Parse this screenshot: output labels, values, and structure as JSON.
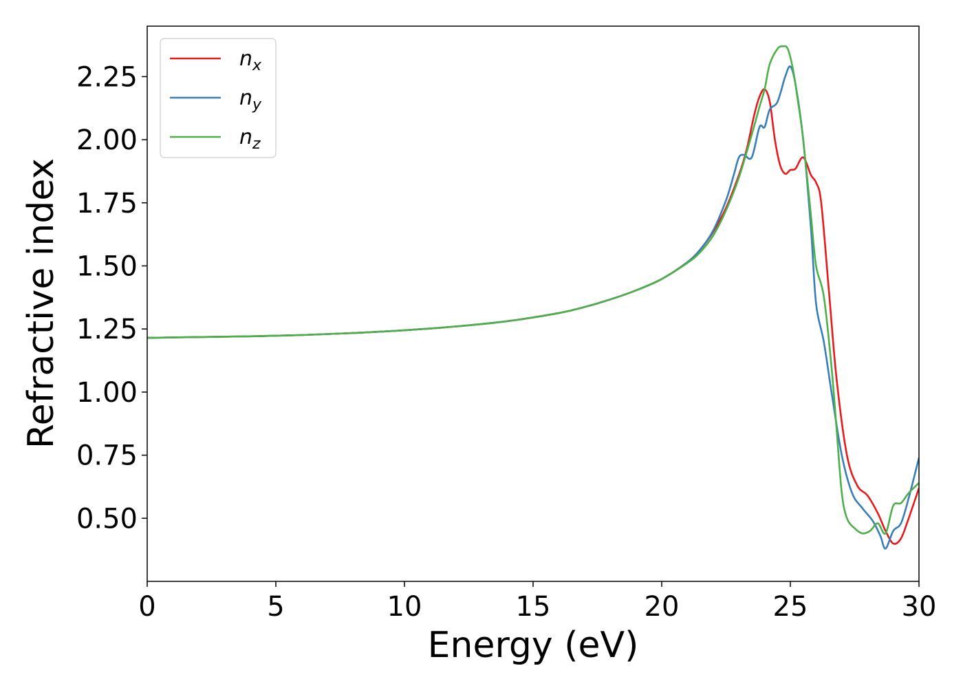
{
  "chart_data": {
    "type": "line",
    "title": "",
    "xlabel": "Energy (eV)",
    "ylabel": "Refractive index",
    "xlim": [
      0,
      30
    ],
    "ylim": [
      0.25,
      2.45
    ],
    "xticks": [
      0,
      5,
      10,
      15,
      20,
      25,
      30
    ],
    "xtick_labels": [
      "0",
      "5",
      "10",
      "15",
      "20",
      "25",
      "30"
    ],
    "yticks": [
      0.5,
      0.75,
      1.0,
      1.25,
      1.5,
      1.75,
      2.0,
      2.25
    ],
    "ytick_labels": [
      "0.50",
      "0.75",
      "1.00",
      "1.25",
      "1.50",
      "1.75",
      "2.00",
      "2.25"
    ],
    "grid": false,
    "legend_position": "top-left",
    "series": [
      {
        "name": "n_x",
        "legend_base": "n",
        "legend_sub": "x",
        "color": "#e41a1c",
        "x": [
          0,
          2,
          4,
          6,
          8,
          10,
          12,
          14,
          16,
          17,
          18,
          19,
          20,
          21,
          21.5,
          22,
          22.5,
          23,
          23.3,
          23.6,
          23.8,
          24,
          24.2,
          24.4,
          24.6,
          24.8,
          25,
          25.2,
          25.5,
          25.8,
          26,
          26.2,
          26.5,
          26.8,
          27.2,
          27.6,
          28,
          28.4,
          28.7,
          29,
          29.3,
          29.6,
          30
        ],
        "y": [
          1.215,
          1.218,
          1.221,
          1.226,
          1.234,
          1.245,
          1.26,
          1.281,
          1.313,
          1.337,
          1.367,
          1.403,
          1.448,
          1.515,
          1.565,
          1.635,
          1.73,
          1.86,
          1.96,
          2.1,
          2.17,
          2.2,
          2.15,
          2.0,
          1.9,
          1.865,
          1.88,
          1.885,
          1.93,
          1.86,
          1.83,
          1.75,
          1.4,
          1.05,
          0.75,
          0.63,
          0.59,
          0.52,
          0.45,
          0.4,
          0.42,
          0.5,
          0.62
        ]
      },
      {
        "name": "n_y",
        "legend_base": "n",
        "legend_sub": "y",
        "color": "#377eb8",
        "x": [
          0,
          2,
          4,
          6,
          8,
          10,
          12,
          14,
          16,
          17,
          18,
          19,
          20,
          21,
          21.5,
          22,
          22.5,
          22.8,
          23,
          23.2,
          23.5,
          23.8,
          24,
          24.2,
          24.5,
          24.8,
          25,
          25.2,
          25.5,
          25.8,
          26,
          26.3,
          26.6,
          27,
          27.4,
          27.8,
          28.2,
          28.5,
          28.7,
          29,
          29.3,
          29.6,
          30
        ],
        "y": [
          1.215,
          1.218,
          1.221,
          1.226,
          1.234,
          1.245,
          1.26,
          1.281,
          1.313,
          1.337,
          1.367,
          1.403,
          1.448,
          1.515,
          1.565,
          1.64,
          1.76,
          1.86,
          1.93,
          1.94,
          1.93,
          2.05,
          2.05,
          2.12,
          2.15,
          2.25,
          2.29,
          2.22,
          2.0,
          1.65,
          1.35,
          1.2,
          1.0,
          0.75,
          0.6,
          0.54,
          0.49,
          0.43,
          0.38,
          0.45,
          0.48,
          0.58,
          0.74
        ]
      },
      {
        "name": "n_z",
        "legend_base": "n",
        "legend_sub": "z",
        "color": "#4daf4a",
        "x": [
          0,
          2,
          4,
          6,
          8,
          10,
          12,
          14,
          16,
          17,
          18,
          19,
          20,
          21,
          21.5,
          22,
          22.5,
          23,
          23.5,
          23.8,
          24,
          24.2,
          24.5,
          24.7,
          24.9,
          25.1,
          25.3,
          25.5,
          25.8,
          26,
          26.3,
          26.6,
          26.8,
          27,
          27.2,
          27.5,
          27.8,
          28.1,
          28.4,
          28.7,
          29,
          29.3,
          29.6,
          30
        ],
        "y": [
          1.215,
          1.218,
          1.221,
          1.226,
          1.234,
          1.245,
          1.26,
          1.281,
          1.313,
          1.337,
          1.367,
          1.403,
          1.448,
          1.512,
          1.555,
          1.62,
          1.72,
          1.85,
          2.02,
          2.13,
          2.2,
          2.3,
          2.36,
          2.37,
          2.36,
          2.28,
          2.15,
          2.0,
          1.7,
          1.5,
          1.38,
          1.1,
          0.85,
          0.6,
          0.5,
          0.46,
          0.44,
          0.45,
          0.48,
          0.44,
          0.55,
          0.56,
          0.6,
          0.64
        ]
      }
    ]
  }
}
